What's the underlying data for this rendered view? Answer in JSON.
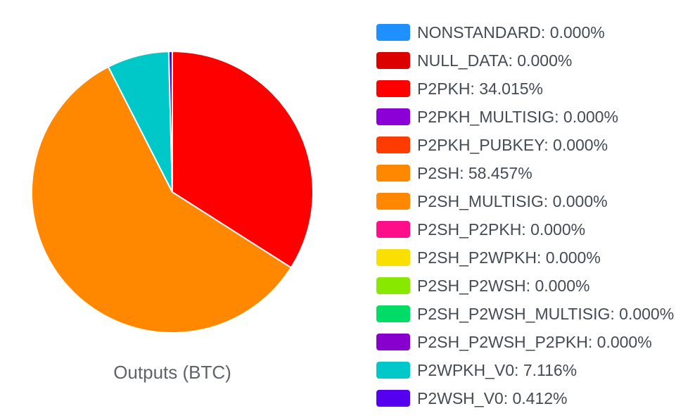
{
  "chart_data": {
    "type": "pie",
    "title": "Outputs (BTC)",
    "legend_position": "right",
    "slices": [
      {
        "label": "NONSTANDARD: 0.000%",
        "value": 0.0,
        "color": "#1e90ff"
      },
      {
        "label": "NULL_DATA: 0.000%",
        "value": 0.0,
        "color": "#dd0000"
      },
      {
        "label": "P2PKH: 34.015%",
        "value": 34.015,
        "color": "#ff0000"
      },
      {
        "label": "P2PKH_MULTISIG: 0.000%",
        "value": 0.0,
        "color": "#8b00d6"
      },
      {
        "label": "P2PKH_PUBKEY: 0.000%",
        "value": 0.0,
        "color": "#ff3c00"
      },
      {
        "label": "P2SH: 58.457%",
        "value": 58.457,
        "color": "#ff8800"
      },
      {
        "label": "P2SH_MULTISIG: 0.000%",
        "value": 0.0,
        "color": "#ff8800"
      },
      {
        "label": "P2SH_P2PKH: 0.000%",
        "value": 0.0,
        "color": "#ff0e8a"
      },
      {
        "label": "P2SH_P2WPKH: 0.000%",
        "value": 0.0,
        "color": "#f9e000"
      },
      {
        "label": "P2SH_P2WSH: 0.000%",
        "value": 0.0,
        "color": "#88e800"
      },
      {
        "label": "P2SH_P2WSH_MULTISIG: 0.000%",
        "value": 0.0,
        "color": "#00dd66"
      },
      {
        "label": "P2SH_P2WSH_P2PKH: 0.000%",
        "value": 0.0,
        "color": "#8800cc"
      },
      {
        "label": "P2WPKH_V0: 7.116%",
        "value": 7.116,
        "color": "#00c8c8"
      },
      {
        "label": "P2WSH_V0: 0.412%",
        "value": 0.412,
        "color": "#5500ee"
      }
    ]
  }
}
